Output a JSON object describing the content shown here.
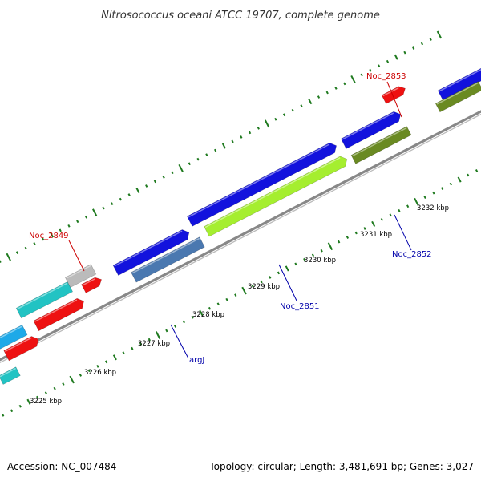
{
  "title": "Nitrosococcus oceani ATCC 19707, complete genome",
  "footer": {
    "accession": "Accession: NC_007484",
    "summary": "Topology: circular; Length: 3,481,691 bp; Genes: 3,027"
  },
  "colors": {
    "backbone": "#777777",
    "ticks": "#1f7a1f",
    "highlight_label": "#cc0000",
    "normal_label": "#0000aa"
  },
  "tick_labels": [
    "3225 kbp",
    "3226 kbp",
    "3227 kbp",
    "3228 kbp",
    "3229 kbp",
    "3230 kbp",
    "3231 kbp",
    "3232 kbp"
  ],
  "gene_labels": [
    {
      "text": "Noc_2849",
      "color": "#cc0000"
    },
    {
      "text": "Noc_2853",
      "color": "#cc0000"
    },
    {
      "text": "argJ",
      "color": "#0000aa"
    },
    {
      "text": "Noc_2851",
      "color": "#0000aa"
    },
    {
      "text": "Noc_2852",
      "color": "#0000aa"
    }
  ]
}
